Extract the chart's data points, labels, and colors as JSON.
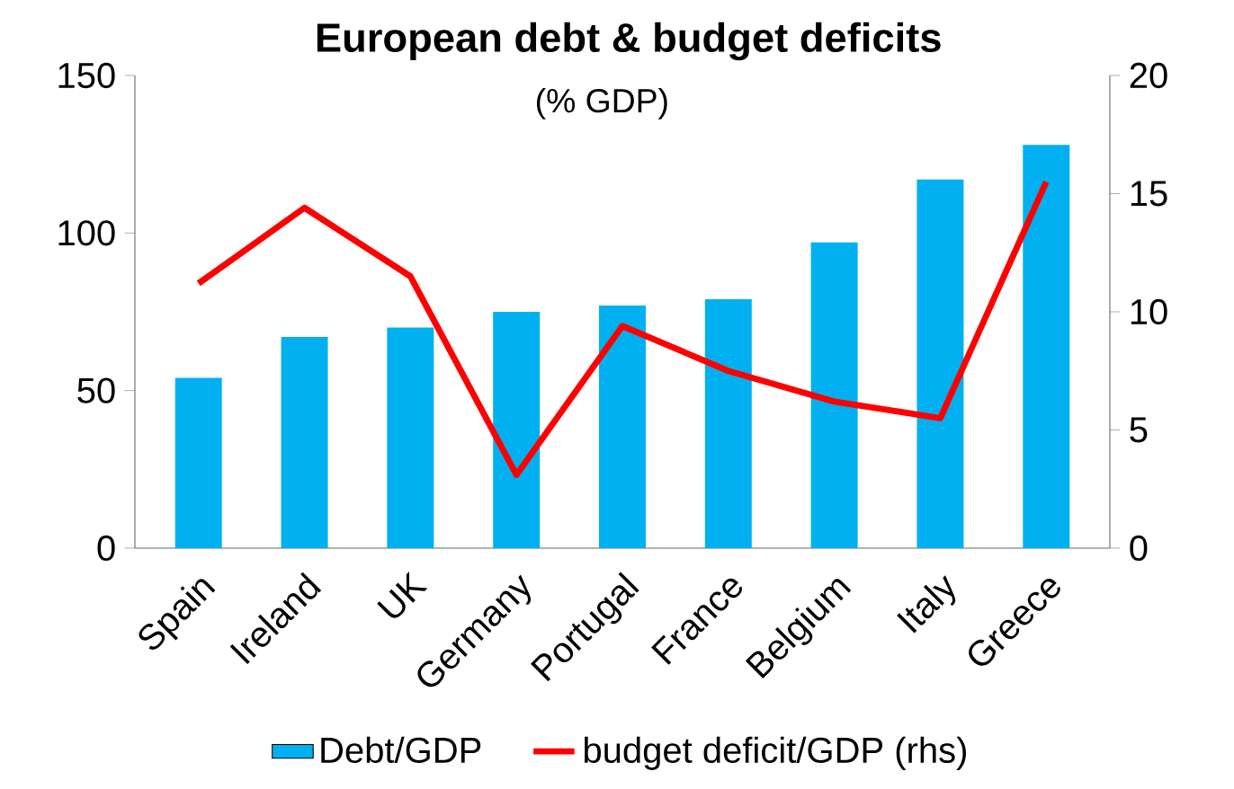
{
  "chart_data": {
    "type": "bar",
    "title": "European debt & budget deficits",
    "subtitle": "(% GDP)",
    "categories": [
      "Spain",
      "Ireland",
      "UK",
      "Germany",
      "Portugal",
      "France",
      "Belgium",
      "Italy",
      "Greece"
    ],
    "series": [
      {
        "name": "Debt/GDP",
        "color": "#00b0f0",
        "values": [
          54,
          67,
          70,
          75,
          77,
          79,
          97,
          117,
          128
        ]
      },
      {
        "name": "budget deficit/GDP (rhs)",
        "type": "line",
        "axis": "y2",
        "color": "#ff0000",
        "marker": "none",
        "values": [
          11.2,
          14.4,
          11.5,
          3.1,
          9.4,
          7.5,
          6.2,
          5.5,
          15.5
        ]
      }
    ],
    "ylim": [
      0,
      150
    ],
    "yticks": [
      0,
      50,
      100,
      150
    ],
    "y2lim": [
      0,
      20
    ],
    "y2ticks": [
      0,
      5,
      10,
      15,
      20
    ],
    "legend": "bottom"
  }
}
